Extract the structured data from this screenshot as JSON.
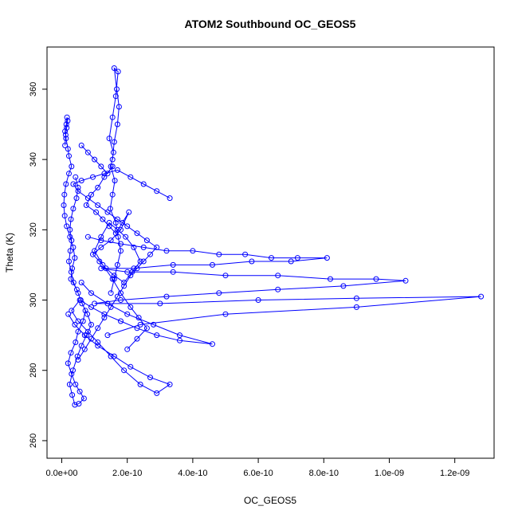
{
  "chart_data": {
    "type": "line",
    "title": "ATOM2 Southbound OC_GEOS5",
    "xlabel": "OC_GEOS5",
    "ylabel": "Theta (K)",
    "xlim": [
      -4.5e-11,
      1.32e-09
    ],
    "ylim": [
      255,
      372
    ],
    "x_ticks": [
      0,
      2e-10,
      4e-10,
      6e-10,
      8e-10,
      1e-09,
      1.2e-09
    ],
    "x_tick_labels": [
      "0.0e+00",
      "2.0e-10",
      "4.0e-10",
      "6.0e-10",
      "8.0e-10",
      "1.0e-09",
      "1.2e-09"
    ],
    "y_ticks": [
      260,
      280,
      300,
      320,
      340,
      360
    ],
    "y_tick_labels": [
      "260",
      "280",
      "300",
      "320",
      "340",
      "360"
    ],
    "grid": false,
    "legend": "none",
    "marker": "open-circle",
    "color": "#0000ff",
    "series": [
      {
        "x": [
          1e-11,
          1.2e-11,
          1.5e-11,
          1.8e-11,
          1.6e-11,
          1.4e-11,
          1e-11,
          1.3e-11,
          1.9e-11,
          2.2e-11,
          3e-11,
          2.2e-11,
          1.3e-11,
          8e-12,
          6e-12,
          9e-12,
          1.5e-11,
          2.5e-11,
          3.5e-11,
          4e-11,
          3.2e-11,
          2.8e-11,
          4.6e-11,
          5.8e-11,
          7.2e-11,
          6.5e-11,
          5e-11,
          4.2e-11,
          2.8e-11,
          1.9e-11,
          3e-11,
          4.2e-11,
          5.5e-11,
          6.8e-11,
          5.2e-11,
          4e-11,
          3.2e-11,
          2.4e-11,
          3.4e-11,
          4.8e-11,
          6e-11,
          7.6e-11,
          9e-11,
          7.8e-11,
          6.2e-11,
          5e-11,
          3.6e-11,
          2.9e-11,
          2.2e-11,
          2.6e-11,
          3e-11,
          2.5e-11,
          2.8e-11,
          3.5e-11,
          4.5e-11,
          5e-11,
          4.2e-11
        ],
        "y": [
          344,
          347,
          349,
          351,
          352,
          350,
          348,
          346,
          343,
          341,
          338,
          336,
          333,
          330,
          327,
          324,
          321,
          318,
          315,
          312,
          309,
          306,
          303,
          300,
          297,
          294,
          291,
          288,
          285,
          282,
          279,
          276,
          274,
          272,
          270.5,
          270.2,
          273,
          276,
          280,
          284,
          287,
          290,
          293,
          296,
          299,
          302,
          305,
          308,
          311,
          314,
          317,
          320,
          323,
          326,
          329,
          332,
          335
        ]
      },
      {
        "x": [
          1.55e-10,
          1.6e-10,
          1.7e-10,
          1.75e-10,
          1.68e-10,
          1.6e-10,
          1.72e-10,
          1.65e-10,
          1.55e-10,
          1.45e-10,
          1.58e-10,
          1.5e-10,
          1.62e-10,
          1.55e-10,
          1.48e-10,
          1.65e-10,
          1.72e-10,
          1.8e-10,
          1.7e-10,
          1.6e-10,
          1.5e-10
        ],
        "y": [
          340,
          345,
          350,
          355,
          360,
          366,
          365,
          358,
          352,
          346,
          342,
          338,
          334,
          330,
          326,
          322,
          318,
          314,
          310,
          306,
          302
        ]
      },
      {
        "x": [
          6e-11,
          8e-11,
          1e-10,
          1.2e-10,
          1.4e-10,
          1.55e-10,
          1.3e-10,
          1.1e-10,
          9e-11,
          7.5e-11,
          1.05e-10,
          1.25e-10,
          1.45e-10,
          1.65e-10,
          1.85e-10,
          2.05e-10,
          1.8e-10,
          1.5e-10,
          1.2e-10,
          9.5e-11,
          1.15e-10,
          1.35e-10,
          1.6e-10,
          1.9e-10,
          2.15e-10,
          2.4e-10,
          2.2e-10,
          1.95e-10,
          1.7e-10,
          1.45e-10,
          1.2e-10,
          1e-10,
          1.25e-10,
          1.55e-10,
          1.8e-10,
          2.1e-10,
          2.35e-10,
          2.6e-10,
          2.3e-10,
          2e-10
        ],
        "y": [
          344,
          342,
          340,
          338,
          336,
          338,
          335,
          332,
          330,
          327,
          325,
          323,
          321,
          319,
          322,
          325,
          320,
          317,
          315,
          313,
          311,
          309,
          307,
          305,
          308,
          311,
          315,
          318,
          320,
          322,
          318,
          314,
          310,
          306,
          302,
          298,
          295,
          292,
          289,
          286
        ]
      },
      {
        "x": [
          8e-11,
          1.2e-10,
          1.8e-10,
          2.5e-10,
          3.2e-10,
          4e-10,
          4.8e-10,
          5.6e-10,
          6.4e-10,
          7.2e-10,
          8.1e-10,
          7e-10,
          5.8e-10,
          4.6e-10,
          3.4e-10,
          2.2e-10,
          1.2e-10,
          2e-10,
          3.4e-10,
          5e-10,
          6.6e-10,
          8.2e-10,
          9.6e-10,
          1.05e-09,
          8.6e-10,
          6.6e-10,
          4.8e-10,
          3.2e-10,
          1.8e-10,
          1e-10,
          3e-10,
          6e-10,
          9e-10,
          1.28e-09,
          9e-10,
          5e-10,
          2.4e-10,
          1.4e-10
        ],
        "y": [
          318,
          317,
          316,
          315,
          314,
          314,
          313,
          313,
          312,
          312,
          312,
          311,
          311,
          310,
          310,
          309,
          309,
          308,
          308,
          307,
          307,
          306,
          306,
          305.5,
          304,
          303,
          302,
          301,
          300,
          299,
          299,
          300,
          300.5,
          301,
          298,
          296,
          293,
          290
        ]
      },
      {
        "x": [
          2e-11,
          4e-11,
          7e-11,
          1.1e-10,
          1.6e-10,
          2.1e-10,
          2.7e-10,
          3.3e-10,
          2.9e-10,
          2.4e-10,
          1.9e-10,
          1.5e-10,
          1.1e-10,
          8e-11,
          5e-11,
          3e-11,
          5.5e-11,
          9e-11,
          1.3e-10,
          1.8e-10,
          2.3e-10,
          2.9e-10,
          3.6e-10,
          4.6e-10,
          3.6e-10,
          2.8e-10,
          2e-10,
          1.4e-10,
          9e-11,
          6e-11
        ],
        "y": [
          296,
          293,
          290,
          287,
          284,
          281,
          278,
          276,
          273.5,
          276,
          280,
          284,
          288,
          291,
          294,
          297,
          300,
          298,
          296,
          294,
          292,
          290,
          288.5,
          287.5,
          290,
          293,
          296,
          299,
          302,
          305
        ]
      },
      {
        "x": [
          5e-11,
          7e-11,
          9e-11,
          1.1e-10,
          1.3e-10,
          1.5e-10,
          1.7e-10,
          1.9e-10,
          2.1e-10,
          2.3e-10,
          2.5e-10,
          2.7e-10,
          2.9e-10,
          2.6e-10,
          2.3e-10,
          2e-10,
          1.7e-10,
          1.4e-10,
          1.1e-10,
          8e-11,
          5e-11,
          3.5e-11,
          6e-11,
          9.5e-11,
          1.3e-10,
          1.7e-10,
          2.1e-10,
          2.5e-10,
          2.9e-10,
          3.3e-10
        ],
        "y": [
          283,
          286,
          289,
          292,
          295,
          298,
          301,
          304,
          307,
          309,
          311,
          313,
          315,
          317,
          319,
          321,
          323,
          325,
          327,
          329,
          331,
          333,
          334,
          335,
          336,
          337,
          335,
          333,
          331,
          329
        ]
      }
    ]
  }
}
